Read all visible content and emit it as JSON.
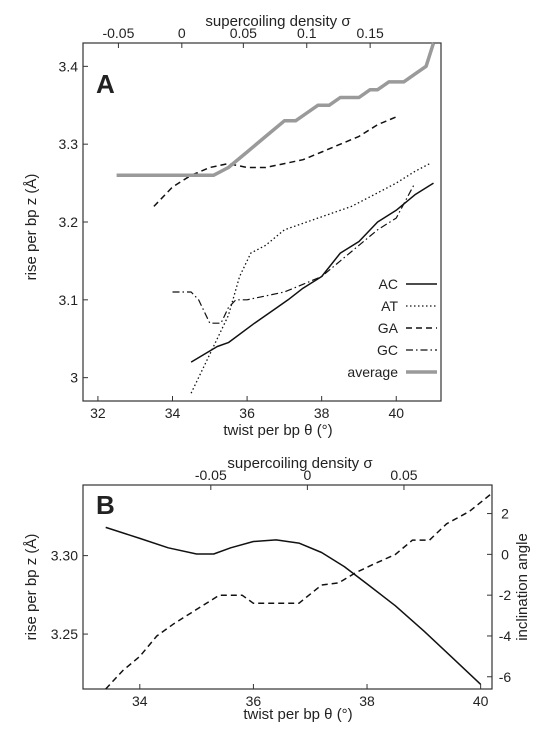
{
  "colors": {
    "average": "#9a9a9a",
    "series": "#111111",
    "frame": "#333333",
    "background": "#ffffff"
  },
  "chart_data": [
    {
      "panel": "A",
      "type": "line",
      "xlabel": "twist per bp θ (°)",
      "ylabel": "rise per bp z (Å)",
      "top_axis_label": "supercoiling density σ",
      "xlim": [
        31.6,
        41.2
      ],
      "ylim": [
        2.97,
        3.43
      ],
      "xticks": [
        32,
        34,
        36,
        38,
        40
      ],
      "yticks": [
        3,
        3.1,
        3.2,
        3.3,
        3.4
      ],
      "top_ticks": [
        {
          "label": "-0.05",
          "x": 32.55
        },
        {
          "label": "0",
          "x": 34.25
        },
        {
          "label": "0.05",
          "x": 35.9
        },
        {
          "label": "0.1",
          "x": 37.6
        },
        {
          "label": "0.15",
          "x": 39.3
        }
      ],
      "legend_position": "bottom-right",
      "series": [
        {
          "name": "AC",
          "style": "solid",
          "x": [
            34.5,
            35.2,
            35.5,
            36.2,
            36.8,
            37.1,
            37.5,
            38.0,
            38.5,
            39.0,
            39.5,
            40.0,
            40.5,
            41.0
          ],
          "y": [
            3.02,
            3.04,
            3.045,
            3.07,
            3.09,
            3.1,
            3.115,
            3.13,
            3.16,
            3.175,
            3.2,
            3.215,
            3.235,
            3.25
          ]
        },
        {
          "name": "AT",
          "style": "dotted",
          "x": [
            34.5,
            35.0,
            35.5,
            35.8,
            36.1,
            36.5,
            37.0,
            37.6,
            38.2,
            38.8,
            39.4,
            40.0,
            40.5,
            40.9
          ],
          "y": [
            2.98,
            3.03,
            3.08,
            3.13,
            3.16,
            3.17,
            3.19,
            3.2,
            3.21,
            3.22,
            3.235,
            3.25,
            3.265,
            3.275
          ]
        },
        {
          "name": "GA",
          "style": "dashed",
          "x": [
            33.5,
            34.0,
            34.5,
            35.0,
            35.5,
            36.0,
            36.5,
            37.0,
            37.5,
            38.0,
            38.5,
            39.0,
            39.5,
            40.0
          ],
          "y": [
            3.22,
            3.245,
            3.26,
            3.27,
            3.275,
            3.27,
            3.27,
            3.275,
            3.28,
            3.29,
            3.3,
            3.31,
            3.325,
            3.335
          ]
        },
        {
          "name": "GC",
          "style": "dashdot",
          "x": [
            34.0,
            34.5,
            34.7,
            35.0,
            35.3,
            35.5,
            35.7,
            36.0,
            36.5,
            37.0,
            37.5,
            38.0,
            38.5,
            39.0,
            39.5,
            40.0,
            40.5
          ],
          "y": [
            3.11,
            3.11,
            3.1,
            3.07,
            3.07,
            3.09,
            3.1,
            3.1,
            3.105,
            3.11,
            3.12,
            3.13,
            3.15,
            3.17,
            3.19,
            3.205,
            3.25
          ]
        },
        {
          "name": "average",
          "style": "thick-gray",
          "x": [
            32.5,
            35.1,
            35.5,
            36.0,
            36.5,
            37.0,
            37.3,
            37.6,
            37.9,
            38.2,
            38.5,
            39.0,
            39.3,
            39.5,
            39.8,
            40.2,
            40.5,
            40.8,
            41.0
          ],
          "y": [
            3.26,
            3.26,
            3.27,
            3.29,
            3.31,
            3.33,
            3.33,
            3.34,
            3.35,
            3.35,
            3.36,
            3.36,
            3.37,
            3.37,
            3.38,
            3.38,
            3.39,
            3.4,
            3.43
          ]
        }
      ]
    },
    {
      "panel": "B",
      "type": "line",
      "xlabel": "twist per bp θ (°)",
      "ylabel": "rise per bp z (Å)",
      "y2label": "inclination angle",
      "top_axis_label": "supercoiling density σ",
      "xlim": [
        33.0,
        40.2
      ],
      "ylim": [
        3.215,
        3.345
      ],
      "y2lim": [
        -6.6,
        3.4
      ],
      "xticks": [
        34,
        36,
        38,
        40
      ],
      "yticks": [
        3.25,
        3.3
      ],
      "ytick_labels": [
        "3.25",
        "3.30"
      ],
      "y2ticks": [
        2,
        0,
        -2,
        -4,
        -6
      ],
      "top_ticks": [
        {
          "label": "-0.05",
          "x": 35.25
        },
        {
          "label": "0",
          "x": 36.95
        },
        {
          "label": "0.05",
          "x": 38.65
        }
      ],
      "series": [
        {
          "style": "solid",
          "axis": "left",
          "x": [
            33.4,
            34.0,
            34.5,
            35.0,
            35.3,
            35.6,
            36.0,
            36.4,
            36.8,
            37.2,
            37.6,
            38.0,
            38.5,
            39.0,
            39.5,
            40.0
          ],
          "y": [
            3.318,
            3.311,
            3.305,
            3.301,
            3.301,
            3.305,
            3.309,
            3.31,
            3.308,
            3.302,
            3.293,
            3.282,
            3.268,
            3.252,
            3.235,
            3.218
          ]
        },
        {
          "style": "dashed",
          "axis": "right",
          "x": [
            33.4,
            33.7,
            34.0,
            34.3,
            34.6,
            35.0,
            35.4,
            35.8,
            36.0,
            36.5,
            36.8,
            37.2,
            37.5,
            37.8,
            38.1,
            38.5,
            38.8,
            39.1,
            39.4,
            39.8,
            40.2
          ],
          "y": [
            -6.6,
            -5.7,
            -5.0,
            -4.0,
            -3.4,
            -2.7,
            -2.0,
            -2.0,
            -2.4,
            -2.4,
            -2.4,
            -1.5,
            -1.4,
            -0.9,
            -0.5,
            0.0,
            0.7,
            0.7,
            1.5,
            2.1,
            3.0
          ]
        }
      ]
    }
  ]
}
